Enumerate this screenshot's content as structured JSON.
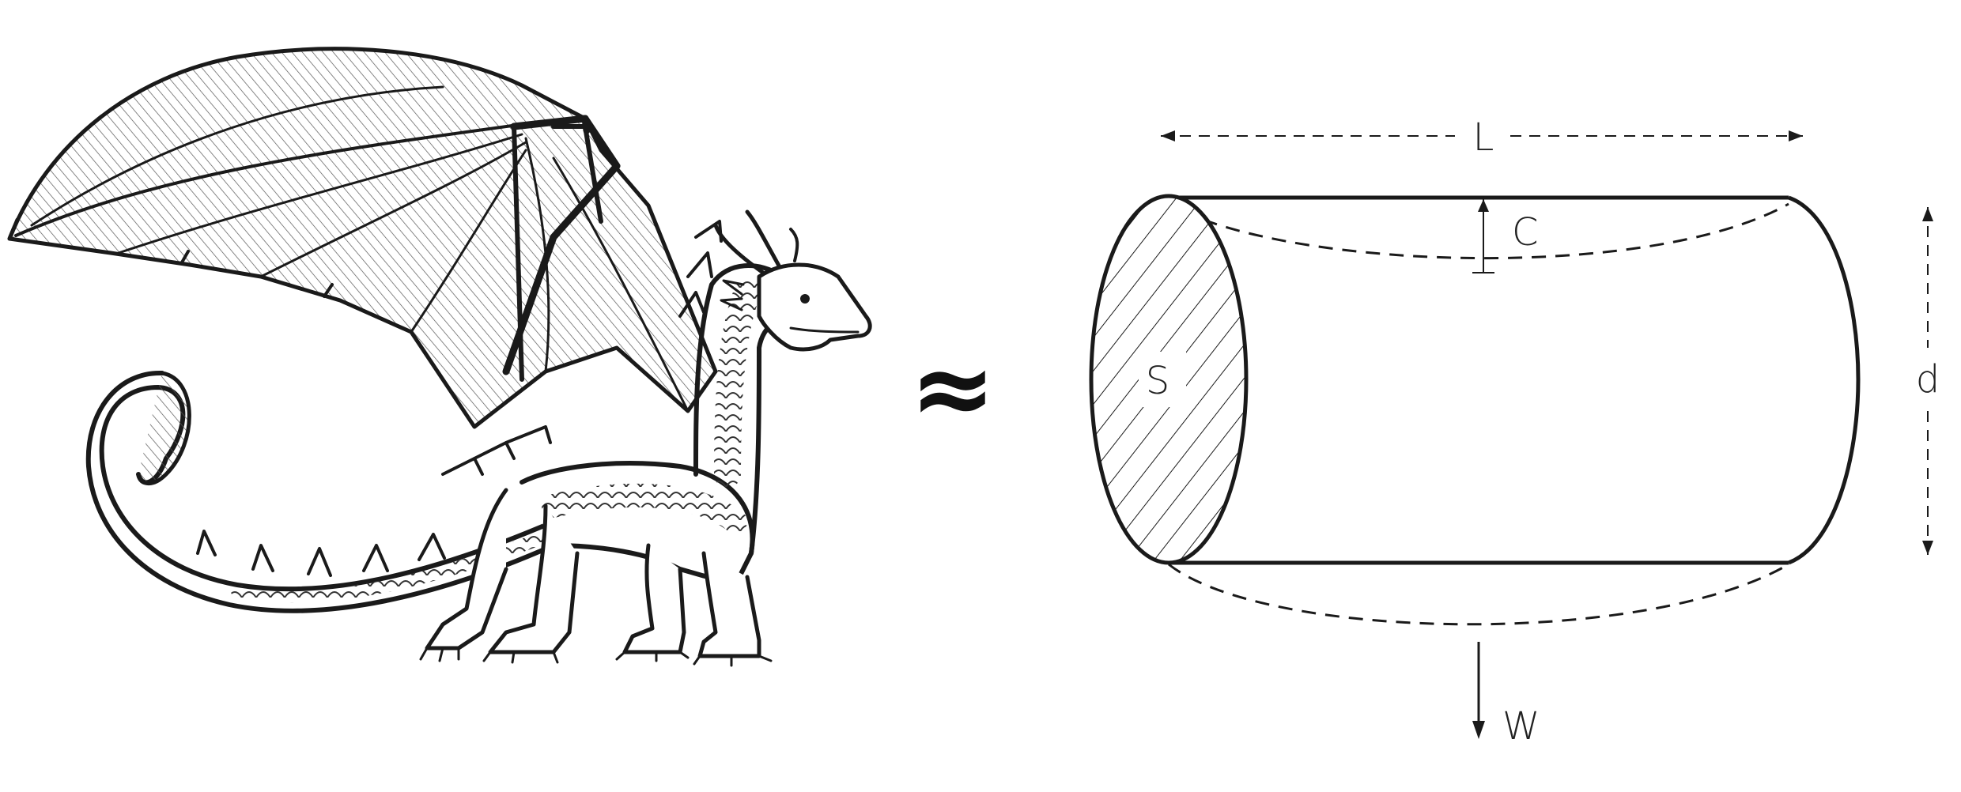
{
  "colors": {
    "ink": "#1a1a1a",
    "paper": "#ffffff"
  },
  "relation_symbol": "≈",
  "labels": {
    "length": "L",
    "camber": "C",
    "cross_section": "S",
    "diameter": "d",
    "weight": "W"
  },
  "icons": {
    "left_figure": "dragon-sketch-icon",
    "right_figure": "cylinder-diagram"
  }
}
